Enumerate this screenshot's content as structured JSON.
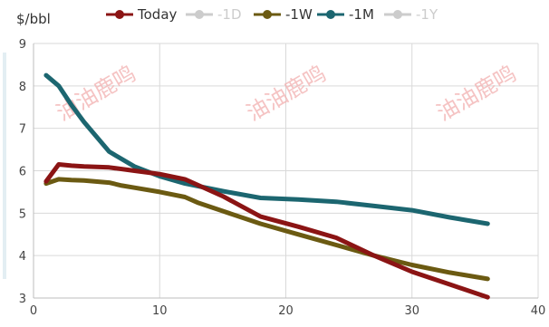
{
  "chart_data": {
    "type": "line",
    "ylabel": "$/bbl",
    "xlim": [
      0,
      40
    ],
    "ylim": [
      3,
      9
    ],
    "x_ticks": [
      "0",
      "10",
      "20",
      "30",
      "40"
    ],
    "y_ticks": [
      "3",
      "4",
      "5",
      "6",
      "7",
      "8",
      "9"
    ],
    "grid": true,
    "legend_position": "top",
    "watermark_text": "油油鹿鸣",
    "series": [
      {
        "name": "Today",
        "color": "#8b1414",
        "visible": true,
        "x": [
          1,
          2,
          3,
          4,
          6,
          8,
          10,
          12,
          15,
          18,
          21,
          24,
          27,
          30,
          33,
          36
        ],
        "y": [
          5.75,
          6.15,
          6.12,
          6.1,
          6.08,
          6.0,
          5.92,
          5.8,
          5.4,
          4.92,
          4.68,
          4.42,
          4.0,
          3.62,
          3.32,
          3.02
        ]
      },
      {
        "name": "-1D",
        "color": "#cccccc",
        "visible": false,
        "x": [],
        "y": []
      },
      {
        "name": "-1W",
        "color": "#6b5a12",
        "visible": true,
        "x": [
          1,
          2,
          3,
          4,
          6,
          7,
          8,
          10,
          12,
          13,
          15,
          18,
          21,
          24,
          27,
          30,
          33,
          36
        ],
        "y": [
          5.7,
          5.8,
          5.78,
          5.77,
          5.72,
          5.65,
          5.6,
          5.5,
          5.38,
          5.25,
          5.05,
          4.75,
          4.5,
          4.25,
          4.0,
          3.78,
          3.6,
          3.45
        ]
      },
      {
        "name": "-1M",
        "color": "#1c6670",
        "visible": true,
        "x": [
          1,
          2,
          3,
          4,
          5,
          6,
          8,
          10,
          12,
          15,
          18,
          21,
          24,
          27,
          30,
          33,
          36
        ],
        "y": [
          8.25,
          8.0,
          7.55,
          7.15,
          6.8,
          6.45,
          6.1,
          5.87,
          5.7,
          5.52,
          5.36,
          5.32,
          5.27,
          5.17,
          5.07,
          4.9,
          4.75
        ]
      },
      {
        "name": "-1Y",
        "color": "#cccccc",
        "visible": false,
        "x": [],
        "y": []
      }
    ]
  }
}
